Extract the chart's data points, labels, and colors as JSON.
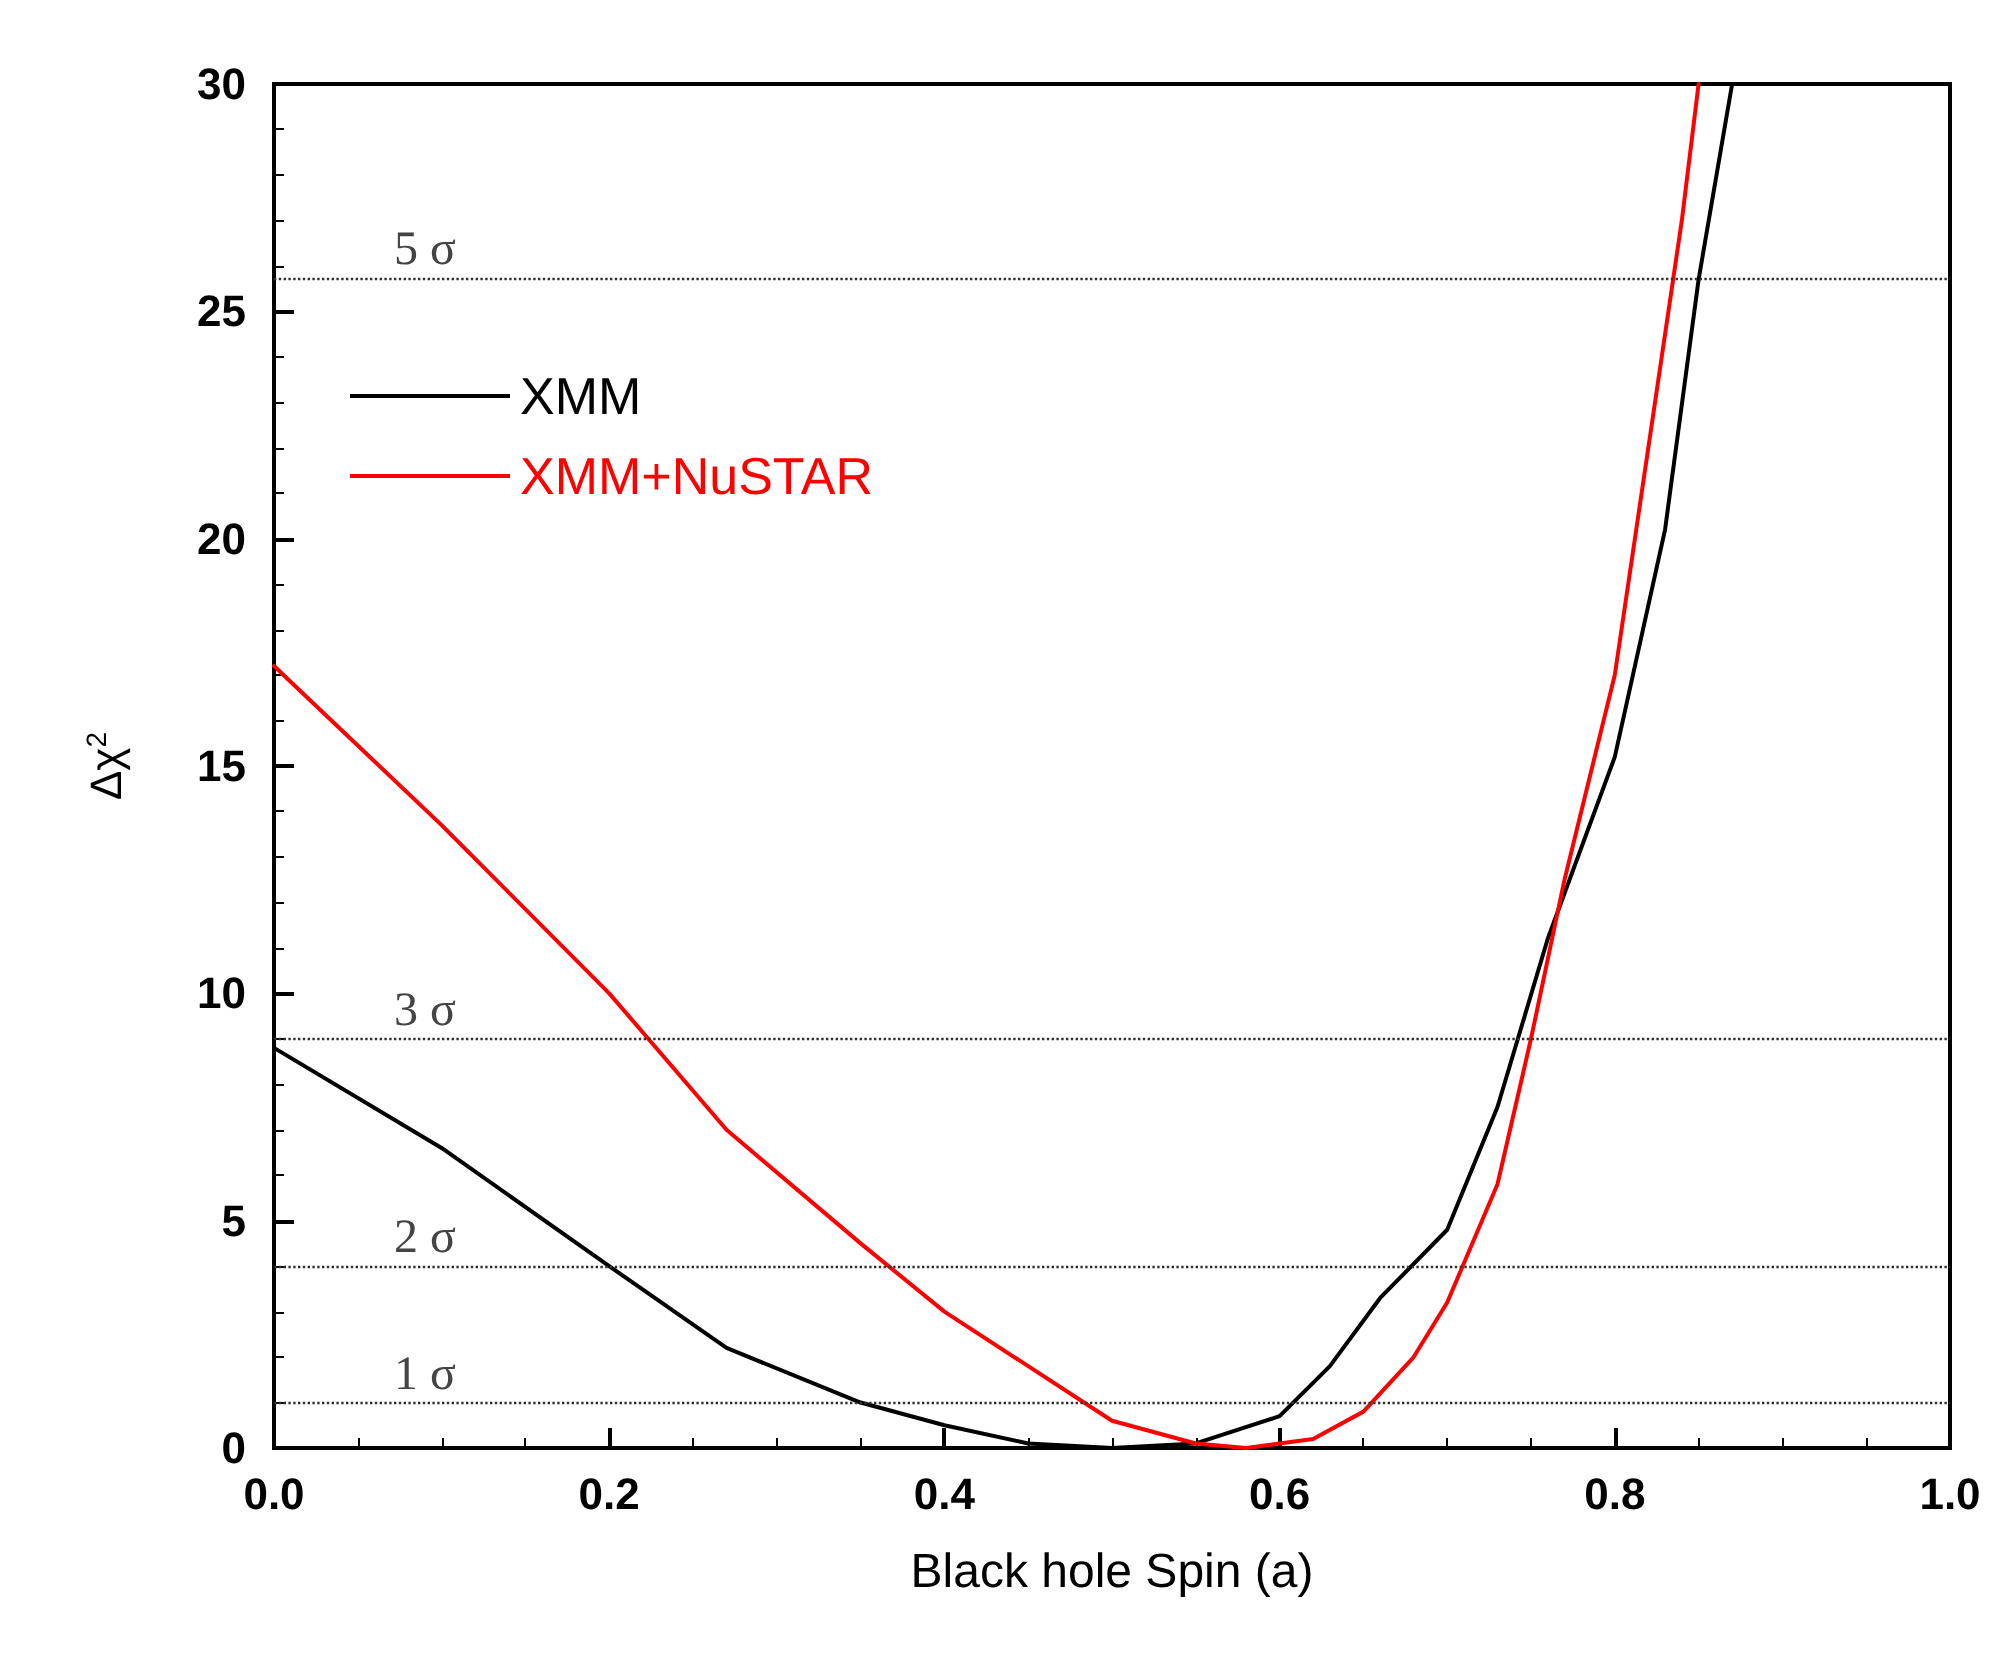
{
  "chart_data": {
    "type": "line",
    "xlabel": "Black hole Spin (a)",
    "ylabel": "Δχ$^{2}$",
    "xlim": [
      0,
      1
    ],
    "xticks": [
      {
        "value": 0,
        "label": "0.0"
      },
      0.2,
      0.4,
      0.6,
      0.8,
      {
        "value": 1,
        "label": "1.0"
      }
    ],
    "ylim": [
      0,
      30
    ],
    "yticks": [
      0,
      5,
      10,
      15,
      20,
      25,
      30
    ],
    "grid": false,
    "legend": "top left",
    "marker": "none",
    "line_style": "solid",
    "series": [
      {
        "name": "XMM",
        "color": "#000000",
        "x": [
          0,
          0.1,
          0.2,
          0.27,
          0.35,
          0.4,
          0.45,
          0.5,
          0.55,
          0.6,
          0.63,
          0.66,
          0.7,
          0.73,
          0.76,
          0.8,
          0.83,
          0.85,
          0.87
        ],
        "values": [
          8.8,
          6.6,
          4.0,
          2.2,
          1.0,
          0.5,
          0.1,
          0,
          0.1,
          0.7,
          1.8,
          3.3,
          4.8,
          7.5,
          11.2,
          15.2,
          20.2,
          25.7,
          30
        ]
      },
      {
        "name": "XMM+NuSTAR",
        "color": "#ff0000",
        "x": [
          0,
          0.1,
          0.2,
          0.27,
          0.35,
          0.4,
          0.45,
          0.5,
          0.55,
          0.58,
          0.62,
          0.65,
          0.68,
          0.7,
          0.73,
          0.75,
          0.77,
          0.8,
          0.82,
          0.84,
          0.85
        ],
        "values": [
          17.2,
          13.7,
          10.0,
          7.0,
          4.5,
          3.0,
          1.8,
          0.6,
          0.1,
          0,
          0.2,
          0.8,
          2.0,
          3.2,
          5.8,
          9.0,
          12.5,
          17,
          22,
          27,
          30
        ]
      }
    ],
    "ref_lines": [
      {
        "axis": "y",
        "value": 1,
        "label": "1 σ"
      },
      {
        "axis": "y",
        "value": 4,
        "label": "2 σ"
      },
      {
        "axis": "y",
        "value": 9,
        "label": "3 σ"
      },
      {
        "axis": "y",
        "value": 25.74,
        "label": "5 σ"
      }
    ]
  }
}
